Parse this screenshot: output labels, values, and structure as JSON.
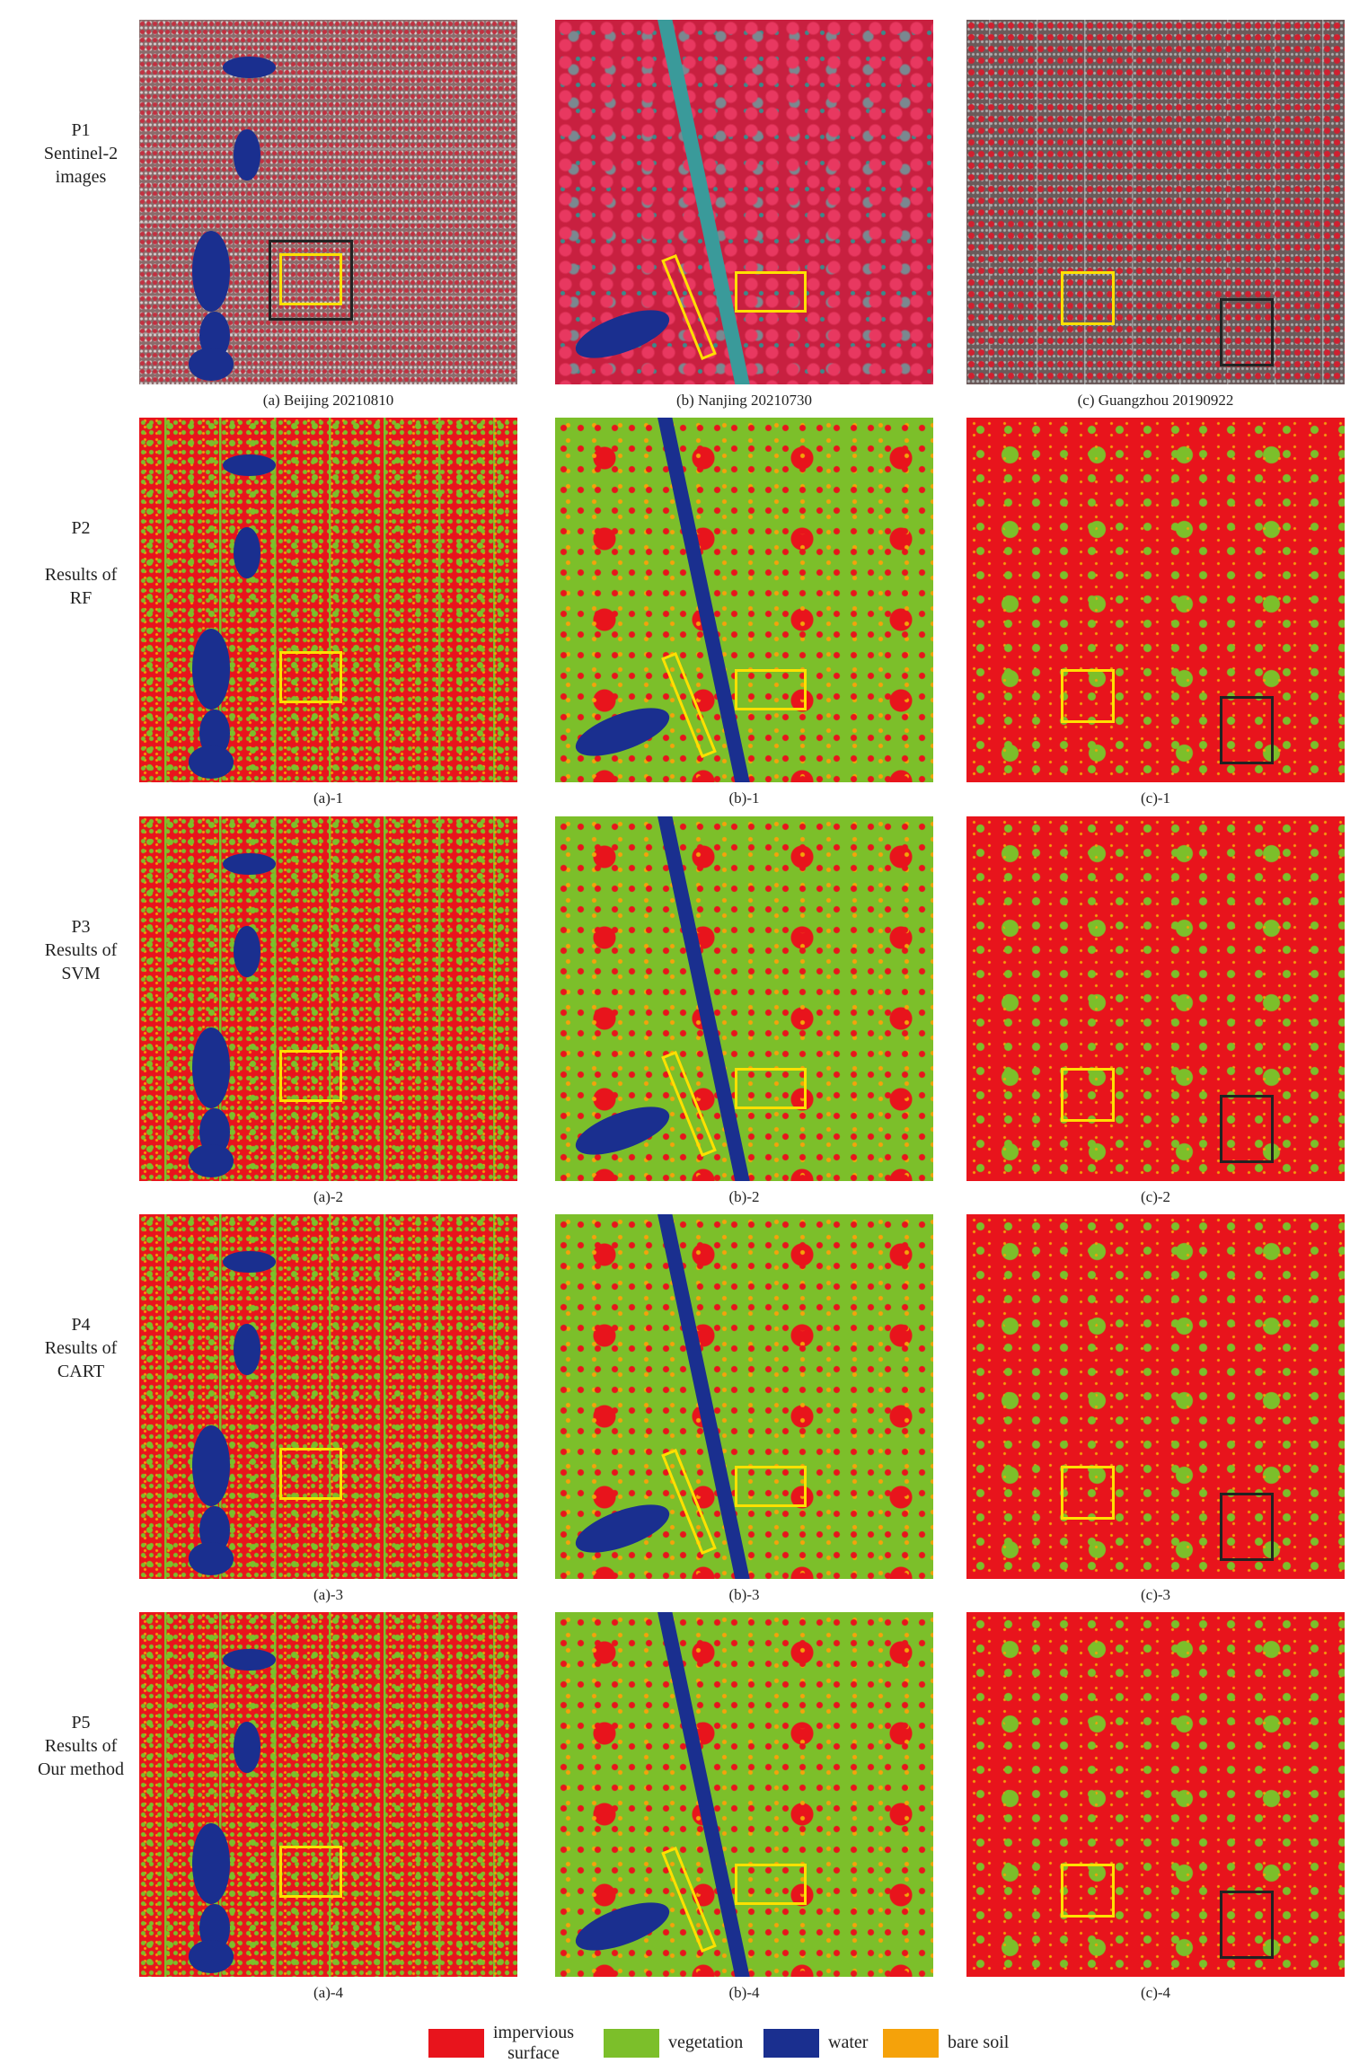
{
  "rows": [
    {
      "label": [
        "P1",
        "Sentinel-2",
        "images"
      ],
      "panels": [
        "(a) Beijing 20210810",
        "(b) Nanjing 20210730",
        "(c) Guangzhou 20190922"
      ]
    },
    {
      "label": [
        "P2",
        "",
        "Results of",
        "RF"
      ],
      "panels": [
        "(a)-1",
        "(b)-1",
        "(c)-1"
      ]
    },
    {
      "label": [
        "P3",
        "Results of",
        "SVM"
      ],
      "panels": [
        "(a)-2",
        "(b)-2",
        "(c)-2"
      ]
    },
    {
      "label": [
        "P4",
        "Results of",
        "CART"
      ],
      "panels": [
        "(a)-3",
        "(b)-3",
        "(c)-3"
      ]
    },
    {
      "label": [
        "P5",
        "Results of",
        "Our method"
      ],
      "panels": [
        "(a)-4",
        "(b)-4",
        "(c)-4"
      ]
    }
  ],
  "legend": [
    {
      "label": [
        "impervious",
        "surface"
      ],
      "color": "#e8141c"
    },
    {
      "label": [
        "vegetation"
      ],
      "color": "#7cbf2a"
    },
    {
      "label": [
        "water"
      ],
      "color": "#1a2f8f"
    },
    {
      "label": [
        "bare soil"
      ],
      "color": "#f5a20a"
    }
  ]
}
